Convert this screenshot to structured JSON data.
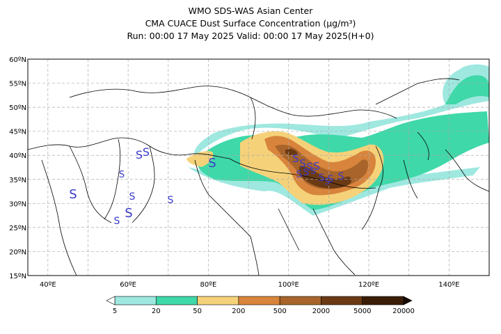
{
  "header": {
    "line1": "WMO SDS-WAS Asian Center",
    "line2": "CMA CUACE Dust Surface Concentration (μg/m³)",
    "line3": "Run: 00:00 17 May 2025    Valid: 00:00 17 May 2025(H+0)"
  },
  "map": {
    "lat_labels": [
      "60ºN",
      "55ºN",
      "50ºN",
      "45ºN",
      "40ºN",
      "35ºN",
      "30ºN",
      "25ºN",
      "20ºN",
      "15ºN"
    ],
    "lon_labels": [
      "40ºE",
      "60ºE",
      "80ºE",
      "100ºE",
      "120ºE",
      "140ºE"
    ],
    "lat_range": [
      15,
      60
    ],
    "lon_range": [
      35,
      150
    ],
    "grid": true,
    "dust_colors": {
      "5-20": "#9ee8e0",
      "20-50": "#3fd8a8",
      "50-200": "#f5d27a",
      "200-500": "#d8843c",
      "500-2000": "#a8642a",
      "2000-5000": "#6b3a14",
      "5000-20000": "#3a1e08"
    },
    "station_symbol": "S",
    "station_color": "#3a3acc"
  },
  "legend": {
    "ticks": [
      "5",
      "20",
      "50",
      "200",
      "500",
      "2000",
      "5000",
      "20000"
    ],
    "colors": [
      "#9ee8e0",
      "#3fd8a8",
      "#f5d27a",
      "#d8843c",
      "#a8642a",
      "#6b3a14",
      "#3a1e08"
    ]
  }
}
